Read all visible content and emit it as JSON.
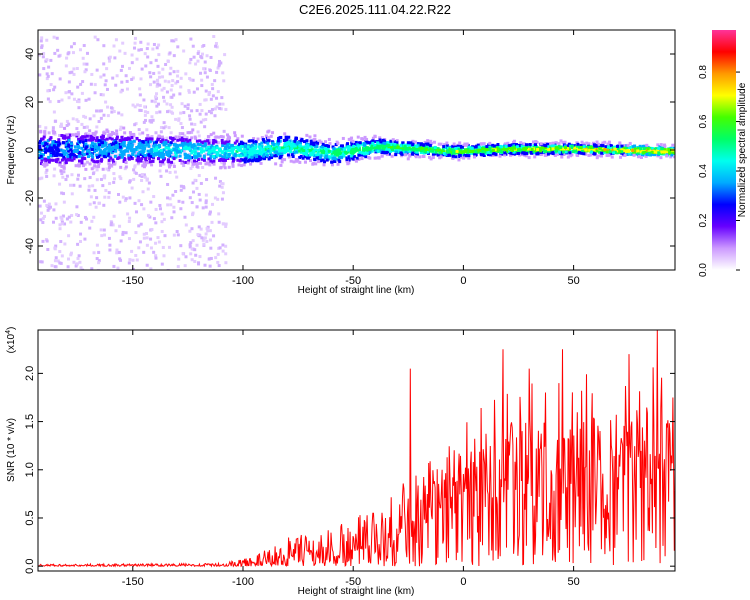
{
  "chart_data": [
    {
      "type": "heatmap",
      "title": "C2E6.2025.111.04.22.R22",
      "xlabel": "Height of straight line (km)",
      "ylabel": "Frequency (Hz)",
      "xlim": [
        -193,
        96
      ],
      "ylim": [
        -50,
        50
      ],
      "xticks": [
        -150,
        -100,
        -50,
        0,
        50
      ],
      "yticks": [
        -40,
        -20,
        0,
        20,
        40
      ],
      "colorbar": {
        "label": "Normalized spectral amplitude",
        "range": [
          0,
          0.97
        ],
        "ticks": [
          "0.0",
          "0.2",
          "0.4",
          "0.6",
          "0.8"
        ],
        "colors": [
          "#ffffff",
          "#cc99ff",
          "#6600ff",
          "#0000ff",
          "#00aaff",
          "#00ffee",
          "#00ff66",
          "#44ff00",
          "#ffff00",
          "#ff9900",
          "#ff0000",
          "#ff3399"
        ]
      },
      "band_center": [
        {
          "x": -193,
          "y": 1
        },
        {
          "x": -150,
          "y": 1
        },
        {
          "x": -100,
          "y": 0
        },
        {
          "x": -80,
          "y": 2
        },
        {
          "x": -60,
          "y": -1
        },
        {
          "x": -40,
          "y": 2
        },
        {
          "x": -20,
          "y": 1
        },
        {
          "x": -5,
          "y": 0
        },
        {
          "x": 20,
          "y": 1
        },
        {
          "x": 50,
          "y": 1
        },
        {
          "x": 96,
          "y": 0
        }
      ],
      "band_halfwidth": [
        {
          "x": -193,
          "y": 10
        },
        {
          "x": -110,
          "y": 8
        },
        {
          "x": -80,
          "y": 7
        },
        {
          "x": -50,
          "y": 6
        },
        {
          "x": -20,
          "y": 4
        },
        {
          "x": 96,
          "y": 3
        }
      ],
      "scatter_extent": {
        "x_from": -193,
        "x_to": -108,
        "y_from": -50,
        "y_to": 48
      }
    },
    {
      "type": "line",
      "xlabel": "Height of straight line (km)",
      "ylabel": "SNR (10 * v/v)",
      "multiplier": "(x10",
      "multiplier_exp": "4",
      "multiplier_close": ")",
      "xlim": [
        -193,
        96
      ],
      "ylim": [
        -0.05,
        2.45
      ],
      "xticks": [
        -150,
        -100,
        -50,
        0,
        50
      ],
      "ytick_labels": [
        "0.0",
        "0.5",
        "1.0",
        "1.5",
        "2.0"
      ],
      "yticks": [
        0,
        0.5,
        1.0,
        1.5,
        2.0
      ],
      "color": "#ff0000",
      "envelope": [
        {
          "x": -193,
          "y": 0.02
        },
        {
          "x": -110,
          "y": 0.03
        },
        {
          "x": -95,
          "y": 0.1
        },
        {
          "x": -80,
          "y": 0.3
        },
        {
          "x": -60,
          "y": 0.4
        },
        {
          "x": -40,
          "y": 0.6
        },
        {
          "x": -28,
          "y": 0.9
        },
        {
          "x": -10,
          "y": 1.3
        },
        {
          "x": 10,
          "y": 1.7
        },
        {
          "x": 30,
          "y": 2.0
        },
        {
          "x": 60,
          "y": 2.0
        },
        {
          "x": 96,
          "y": 2.1
        }
      ],
      "peaks": [
        {
          "x": -24,
          "y": 2.05
        },
        {
          "x": 18,
          "y": 2.25
        },
        {
          "x": 30,
          "y": 2.05
        },
        {
          "x": 45,
          "y": 2.25
        },
        {
          "x": 75,
          "y": 2.2
        },
        {
          "x": 88,
          "y": 2.45
        },
        {
          "x": 95,
          "y": 1.75
        }
      ]
    }
  ]
}
